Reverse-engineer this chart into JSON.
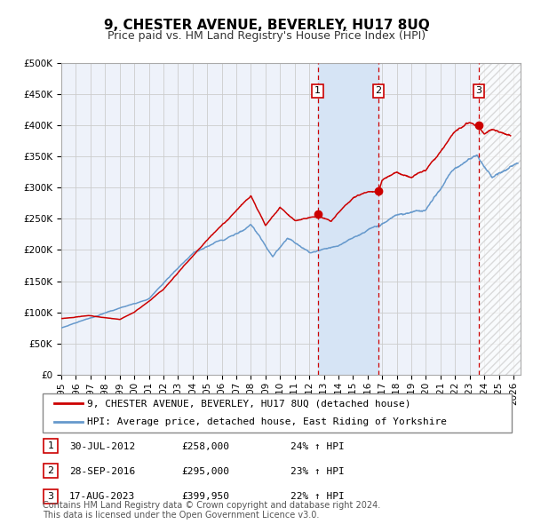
{
  "title": "9, CHESTER AVENUE, BEVERLEY, HU17 8UQ",
  "subtitle": "Price paid vs. HM Land Registry's House Price Index (HPI)",
  "legend_red": "9, CHESTER AVENUE, BEVERLEY, HU17 8UQ (detached house)",
  "legend_blue": "HPI: Average price, detached house, East Riding of Yorkshire",
  "transactions": [
    {
      "num": 1,
      "date": "30-JUL-2012",
      "price": "£258,000",
      "hpi_diff": "24% ↑ HPI",
      "x_year": 2012.58
    },
    {
      "num": 2,
      "date": "28-SEP-2016",
      "price": "£295,000",
      "hpi_diff": "23% ↑ HPI",
      "x_year": 2016.75
    },
    {
      "num": 3,
      "date": "17-AUG-2023",
      "price": "£399,950",
      "hpi_diff": "22% ↑ HPI",
      "x_year": 2023.63
    }
  ],
  "sale_prices": [
    258000,
    295000,
    399950
  ],
  "sale_years": [
    2012.58,
    2016.75,
    2023.63
  ],
  "footer": "Contains HM Land Registry data © Crown copyright and database right 2024.\nThis data is licensed under the Open Government Licence v3.0.",
  "xlim": [
    1995.0,
    2026.5
  ],
  "ylim": [
    0,
    500000
  ],
  "yticks": [
    0,
    50000,
    100000,
    150000,
    200000,
    250000,
    300000,
    350000,
    400000,
    450000,
    500000
  ],
  "xticks": [
    1995,
    1996,
    1997,
    1998,
    1999,
    2000,
    2001,
    2002,
    2003,
    2004,
    2005,
    2006,
    2007,
    2008,
    2009,
    2010,
    2011,
    2012,
    2013,
    2014,
    2015,
    2016,
    2017,
    2018,
    2019,
    2020,
    2021,
    2022,
    2023,
    2024,
    2025,
    2026
  ],
  "red_color": "#cc0000",
  "blue_color": "#6699cc",
  "grid_color": "#cccccc",
  "background_color": "#eef2fa",
  "shade_color": "#d6e4f5",
  "dashed_line_color": "#cc0000",
  "title_fontsize": 11,
  "subtitle_fontsize": 9,
  "axis_fontsize": 7.5,
  "legend_fontsize": 8,
  "footer_fontsize": 7
}
